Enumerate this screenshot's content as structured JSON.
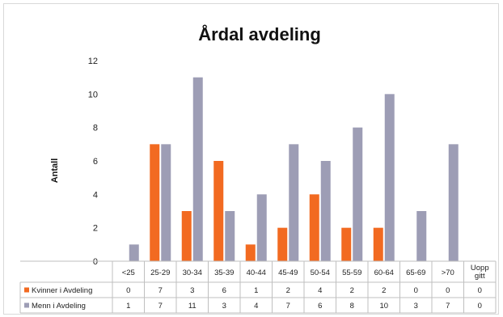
{
  "chart_data": {
    "type": "bar",
    "title": "Årdal avdeling",
    "ylabel": "Antall",
    "xlabel": "",
    "ylim": [
      0,
      12
    ],
    "yticks": [
      0,
      2,
      4,
      6,
      8,
      10,
      12
    ],
    "grid": false,
    "legend": "data-table-bottom",
    "categories": [
      "<25",
      "25-29",
      "30-34",
      "35-39",
      "40-44",
      "45-49",
      "50-54",
      "55-59",
      "60-64",
      "65-69",
      ">70",
      "Uopp gitt"
    ],
    "series": [
      {
        "name": "Kvinner i Avdeling",
        "color": "#f26a21",
        "values": [
          0,
          7,
          3,
          6,
          1,
          2,
          4,
          2,
          2,
          0,
          0,
          0
        ]
      },
      {
        "name": "Menn i Avdeling",
        "color": "#9d9db5",
        "values": [
          1,
          7,
          11,
          3,
          4,
          7,
          6,
          8,
          10,
          3,
          7,
          0
        ]
      }
    ]
  }
}
